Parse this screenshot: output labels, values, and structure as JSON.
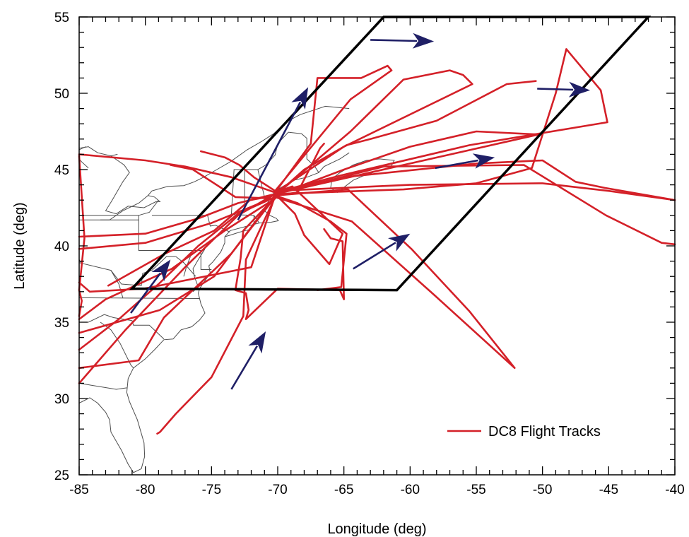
{
  "chart_data": {
    "type": "line",
    "xlabel": "Longitude (deg)",
    "ylabel": "Latitude (deg)",
    "xlim": [
      -85,
      -40
    ],
    "ylim": [
      25,
      55
    ],
    "x_ticks": [
      "-85",
      "-80",
      "-75",
      "-70",
      "-65",
      "-60",
      "-55",
      "-50",
      "-45",
      "-40"
    ],
    "y_ticks": [
      "25",
      "30",
      "35",
      "40",
      "45",
      "50",
      "55"
    ],
    "grid": false,
    "legend": {
      "position": "bottom-right",
      "entries": [
        "DC8 Flight Tracks"
      ]
    },
    "colors": {
      "tracks": "#d42028",
      "region": "#000000",
      "arrows": "#1f1f66",
      "coastline": "#4d4d4d"
    },
    "region_polygon": [
      [
        -81,
        37.2
      ],
      [
        -61,
        37.1
      ],
      [
        -42,
        55
      ],
      [
        -62,
        55
      ]
    ],
    "arrows": [
      {
        "from": [
          -73,
          41.7
        ],
        "to": [
          -67.7
        ],
        "to_lat": 50.4
      },
      {
        "from": [
          -63,
          53.5
        ],
        "to": [
          -58.2
        ],
        "to_lat": 53.4
      },
      {
        "from": [
          -50.4,
          50.3
        ],
        "to": [
          -46.4
        ],
        "to_lat": 50.2
      },
      {
        "from": [
          -58.1,
          45.1
        ],
        "to": [
          -53.6
        ],
        "to_lat": 45.8
      },
      {
        "from": [
          -64.3,
          38.5
        ],
        "to": [
          -60.0
        ],
        "to_lat": 40.8
      },
      {
        "from": [
          -81.1,
          35.6
        ],
        "to": [
          -78.1
        ],
        "to_lat": 39.1
      },
      {
        "from": [
          -73.5,
          30.6
        ],
        "to": [
          -70.9
        ],
        "to_lat": 34.4
      }
    ],
    "series": [
      {
        "name": "DC8 Flight Tracks",
        "tracks": [
          {
            "x": [
              -70.2,
              -73.5,
              -77,
              -80,
              -85
            ],
            "y": [
              43.5,
              44.5,
              45.2,
              45.6,
              46.0
            ]
          },
          {
            "x": [
              -70.2,
              -73,
              -76,
              -80,
              -85
            ],
            "y": [
              43.4,
              42.8,
              41.8,
              40.8,
              40.6
            ]
          },
          {
            "x": [
              -70.2,
              -75,
              -80,
              -85
            ],
            "y": [
              43.2,
              41.5,
              40.2,
              39.8
            ]
          },
          {
            "x": [
              -70.2,
              -74,
              -78,
              -83,
              -85
            ],
            "y": [
              43.1,
              41,
              38.5,
              36.5,
              35.2
            ]
          },
          {
            "x": [
              -70.2,
              -74.8,
              -78.9,
              -85
            ],
            "y": [
              43.3,
              38,
              35.8,
              34.3
            ]
          },
          {
            "x": [
              -85,
              -82,
              -79,
              -76,
              -73,
              -70.2
            ],
            "y": [
              33.2,
              35.2,
              37.5,
              40,
              42.1,
              43.2
            ]
          },
          {
            "x": [
              -70.2,
              -73.5,
              -78.6,
              -80.5,
              -85
            ],
            "y": [
              43.2,
              39.5,
              35.3,
              32.5,
              32.0
            ]
          },
          {
            "x": [
              -85,
              -81.5,
              -77,
              -73,
              -70.2
            ],
            "y": [
              31.0,
              34.5,
              38.6,
              42.0,
              43.4
            ]
          },
          {
            "x": [
              -70.2,
              -72.4,
              -72.6,
              -75,
              -77.7,
              -78.9,
              -79.1
            ],
            "y": [
              43.2,
              39.1,
              35.4,
              31.4,
              29.0,
              27.8,
              27.7
            ]
          },
          {
            "x": [
              -70.2,
              -72,
              -80.1,
              -84.2,
              -85
            ],
            "y": [
              43.3,
              38.6,
              37.2,
              37.0,
              37.6
            ]
          },
          {
            "x": [
              -70.2,
              -72.6,
              -72.8,
              -73.2,
              -72.4,
              -72.2,
              -72.4,
              -70.0,
              -65.3,
              -65.0,
              -65.1,
              -66.0,
              -66.5
            ],
            "y": [
              43.2,
              41.0,
              39.2,
              37.1,
              36.9,
              35.8,
              35.2,
              37.2,
              37.1,
              36.5,
              40.3,
              40.5,
              41.1
            ]
          },
          {
            "x": [
              -70.2,
              -68.5,
              -66.0,
              -65.4,
              -64.8,
              -65.2,
              -67.0
            ],
            "y": [
              43.3,
              42.8,
              41.6,
              41.2,
              40.8,
              37.3,
              37.1
            ]
          },
          {
            "x": [
              -70.2,
              -68.5,
              -66.8,
              -66.5
            ],
            "y": [
              43.3,
              43.5,
              46.4,
              46.7
            ]
          },
          {
            "x": [
              -70.2,
              -67.5,
              -67.0,
              -63.7,
              -61.7,
              -61.4,
              -64.5,
              -70.2
            ],
            "y": [
              43.5,
              46.7,
              51.0,
              51.0,
              51.8,
              51.5,
              49.6,
              43.6
            ]
          },
          {
            "x": [
              -70.2,
              -64.5,
              -60.5,
              -57.0,
              -56.0,
              -55.3,
              -65.0,
              -70.2
            ],
            "y": [
              43.3,
              47.5,
              50.9,
              51.5,
              51.2,
              50.6,
              46.5,
              43.5
            ]
          },
          {
            "x": [
              -70.2,
              -65.0,
              -60.0,
              -55.0,
              -50.3,
              -70.2
            ],
            "y": [
              43.3,
              45.0,
              46.5,
              47.5,
              47.3,
              43.4
            ]
          },
          {
            "x": [
              -70.2,
              -64.4,
              -58.2,
              -52.1,
              -55.5,
              -59.9,
              -64.7,
              -70.2
            ],
            "y": [
              43.2,
              41.6,
              36.8,
              32.0,
              35.7,
              39.8,
              43.7,
              43.3
            ]
          },
          {
            "x": [
              -70.2,
              -60.5,
              -55.0,
              -50.8,
              -49.0,
              -48.2,
              -45.6,
              -45.1,
              -55.5,
              -65.3,
              -70.2
            ],
            "y": [
              43.4,
              43.7,
              44.1,
              45.1,
              50.0,
              52.9,
              50.2,
              48.1,
              46.6,
              44.6,
              43.5
            ]
          },
          {
            "x": [
              -70.2,
              -65.0,
              -55.0,
              -50.0,
              -47.5,
              -45.3,
              -40.0
            ],
            "y": [
              43.5,
              44.5,
              45.4,
              45.6,
              44.2,
              43.8,
              43.0
            ]
          },
          {
            "x": [
              -70.2,
              -60.0,
              -50.0,
              -45.0,
              -40.0
            ],
            "y": [
              43.6,
              44.0,
              44.1,
              43.6,
              43.0
            ]
          },
          {
            "x": [
              -70.2,
              -62.0,
              -51.4,
              -45.2,
              -41.0,
              -40.0
            ],
            "y": [
              43.4,
              45.2,
              45.3,
              42.0,
              40.2,
              40.1
            ]
          },
          {
            "x": [
              -70.2,
              -68.0,
              -64.8,
              -63.0,
              -58.0,
              -52.7,
              -50.5
            ],
            "y": [
              43.3,
              45.0,
              46.6,
              47.0,
              48.2,
              50.6,
              50.8
            ]
          },
          {
            "x": [
              -70.2,
              -73.2,
              -76.4,
              -78.1
            ],
            "y": [
              43.1,
              43.2,
              45.0,
              45.3
            ]
          },
          {
            "x": [
              -70.2,
              -71.8,
              -72.9,
              -74.0,
              -75.8
            ],
            "y": [
              43.6,
              44.5,
              45.3,
              45.8,
              46.2
            ]
          },
          {
            "x": [
              -85,
              -84.8,
              -85.0,
              -84.6,
              -85.0
            ],
            "y": [
              35.4,
              36.4,
              37.1,
              40.5,
              45.9
            ]
          },
          {
            "x": [
              -70.2,
              -72.1,
              -74.8,
              -78.5,
              -82.8
            ],
            "y": [
              43.3,
              43.0,
              41.0,
              39.5,
              37.4
            ]
          },
          {
            "x": [
              -70.2,
              -68.7,
              -68.0,
              -66.1,
              -65.1,
              -68.9,
              -70.2
            ],
            "y": [
              43.4,
              42.1,
              40.7,
              38.8,
              40.8,
              43.9,
              43.5
            ]
          }
        ]
      }
    ]
  }
}
